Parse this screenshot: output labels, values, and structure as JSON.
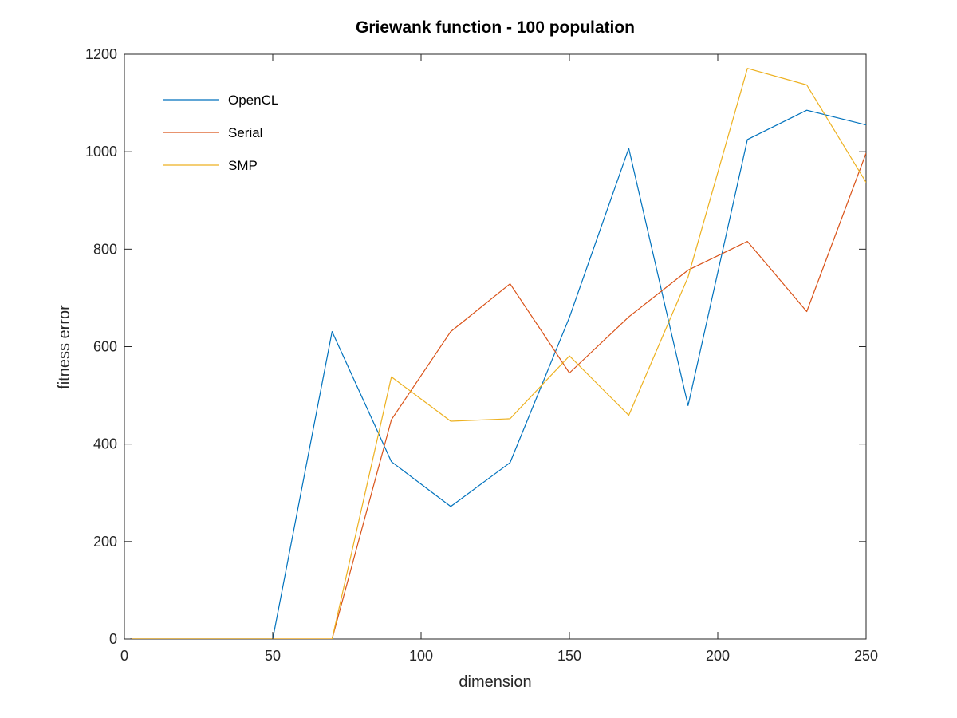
{
  "chart_data": {
    "type": "line",
    "title": "Griewank function - 100 population",
    "xlabel": "dimension",
    "ylabel": "fitness error",
    "xlim": [
      0,
      250
    ],
    "ylim": [
      0,
      1200
    ],
    "x_ticks": [
      0,
      50,
      100,
      150,
      200,
      250
    ],
    "y_ticks": [
      0,
      200,
      400,
      600,
      800,
      1000,
      1200
    ],
    "x_tick_labels": [
      "0",
      "50",
      "100",
      "150",
      "200",
      "250"
    ],
    "y_tick_labels": [
      "0",
      "200",
      "400",
      "600",
      "800",
      "1000",
      "1200"
    ],
    "grid": false,
    "legend_position": "top-left",
    "x": [
      2,
      10,
      30,
      50,
      70,
      90,
      110,
      130,
      150,
      170,
      190,
      210,
      230,
      250
    ],
    "series": [
      {
        "name": "OpenCL",
        "color": "#0072BD",
        "values": [
          0,
          0,
          0,
          0,
          631,
          364,
          272,
          362,
          660,
          1007,
          479,
          1025,
          1085,
          1055
        ]
      },
      {
        "name": "Serial",
        "color": "#D95319",
        "values": [
          0,
          0,
          0,
          0,
          0,
          450,
          631,
          729,
          546,
          661,
          757,
          816,
          672,
          997
        ]
      },
      {
        "name": "SMP",
        "color": "#EDB120",
        "values": [
          0,
          0,
          0,
          0,
          0,
          538,
          447,
          452,
          581,
          459,
          743,
          1171,
          1137,
          937
        ]
      }
    ]
  }
}
